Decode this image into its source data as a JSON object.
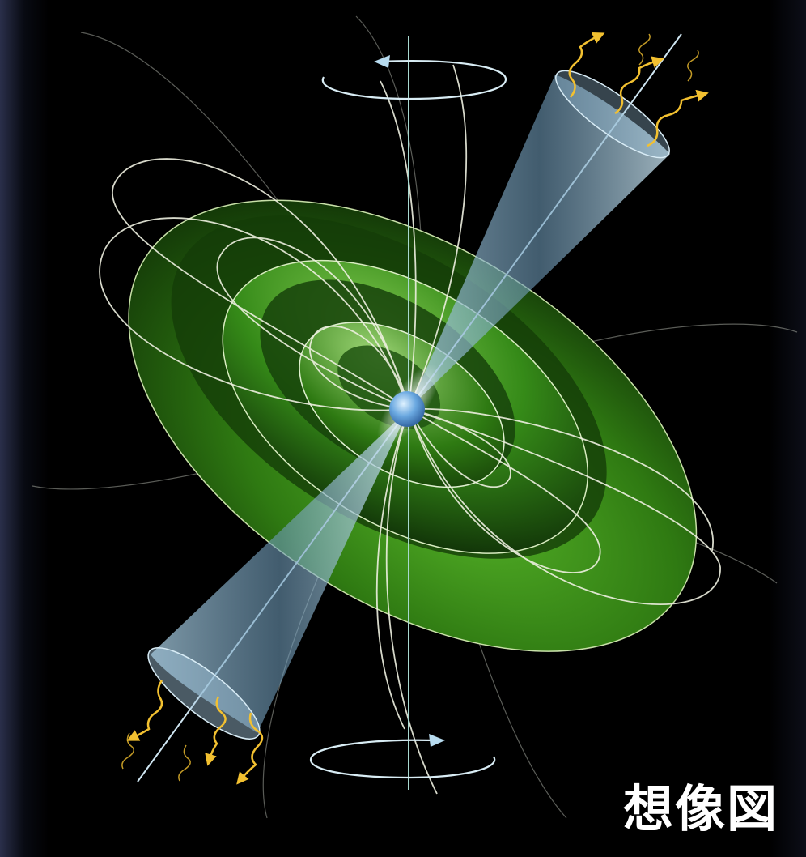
{
  "caption": "想像図",
  "colors": {
    "background": "#000000",
    "magnetosphere": "#3a8a18",
    "field_lines": "#e8ecd8",
    "beam_cone": "#8ab8d8",
    "neutron_star": "#6aa8e0",
    "radiation": "#f2c030",
    "axis": "#a8d8d0"
  },
  "icons": {
    "rotation_top": "rotation-arrow-left-icon",
    "rotation_bottom": "rotation-arrow-right-icon"
  }
}
